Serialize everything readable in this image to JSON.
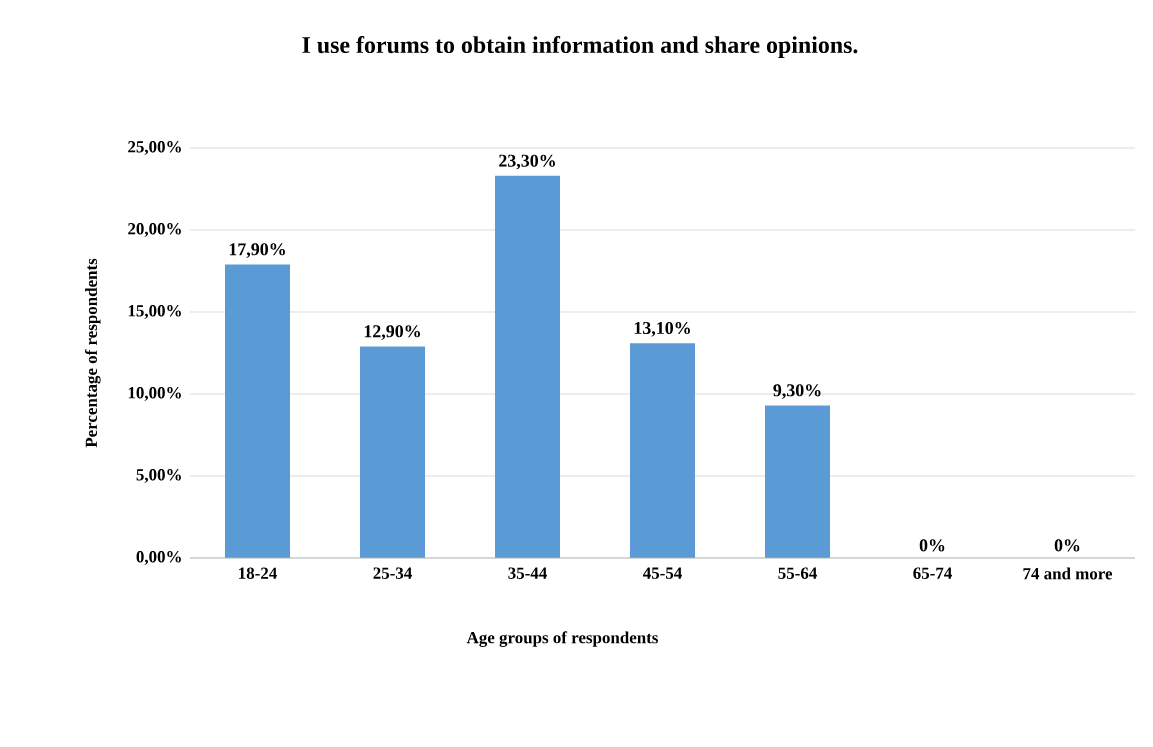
{
  "chart_data": {
    "type": "bar",
    "title": "I use forums to obtain information and share opinions.",
    "xlabel": "Age groups of respondents",
    "ylabel": "Percentage of respondents",
    "categories": [
      "18-24",
      "25-34",
      "35-44",
      "45-54",
      "55-64",
      "65-74",
      "74 and more"
    ],
    "values": [
      17.9,
      12.9,
      23.3,
      13.1,
      9.3,
      0,
      0
    ],
    "value_labels": [
      "17,90%",
      "12,90%",
      "23,30%",
      "13,10%",
      "9,30%",
      "0%",
      "0%"
    ],
    "color": "#5b9bd5",
    "ylim": [
      0,
      25
    ],
    "yticks": [
      {
        "value": 0,
        "label": "0,00%"
      },
      {
        "value": 5,
        "label": "5,00%"
      },
      {
        "value": 10,
        "label": "10,00%"
      },
      {
        "value": 15,
        "label": "15,00%"
      },
      {
        "value": 20,
        "label": "20,00%"
      },
      {
        "value": 25,
        "label": "25,00%"
      }
    ],
    "grid": "y"
  }
}
